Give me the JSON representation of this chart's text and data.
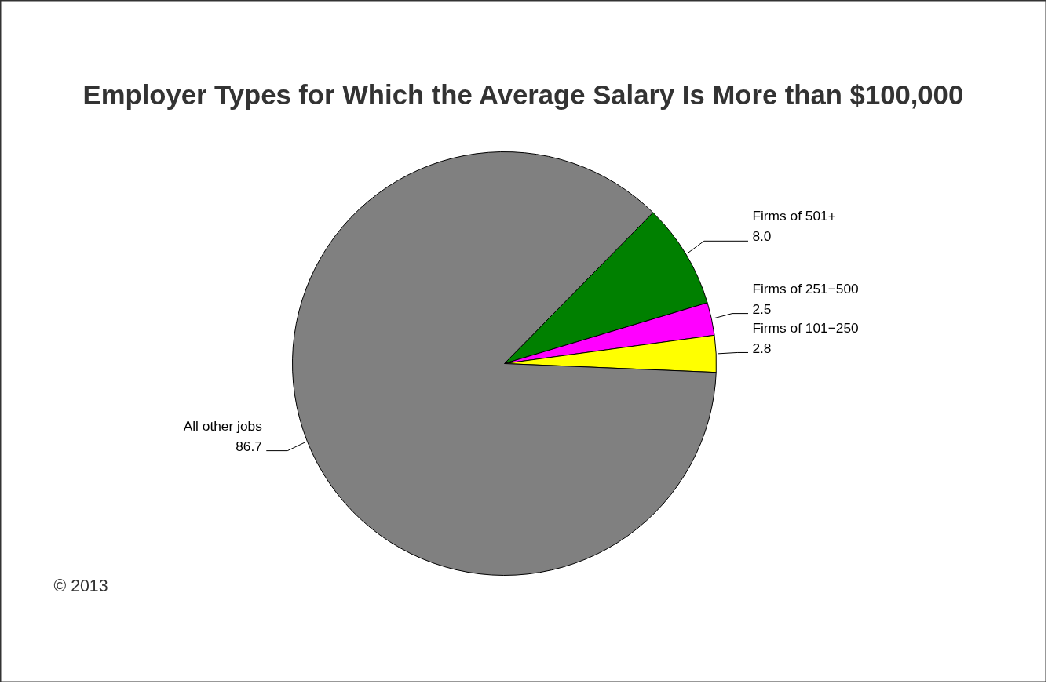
{
  "chart_data": {
    "type": "pie",
    "title": "Employer Types for Which the Average Salary Is More than $100,000",
    "categories": [
      "Firms of 501+",
      "Firms of 251−500",
      "Firms of 101−250",
      "All other jobs"
    ],
    "values": [
      8.0,
      2.5,
      2.8,
      86.7
    ],
    "colors": [
      "#008000",
      "#ff00ff",
      "#ffff00",
      "#808080"
    ],
    "value_labels": [
      "8.0",
      "2.5",
      "2.8",
      "86.7"
    ],
    "annotations": [
      "© 2013"
    ]
  }
}
